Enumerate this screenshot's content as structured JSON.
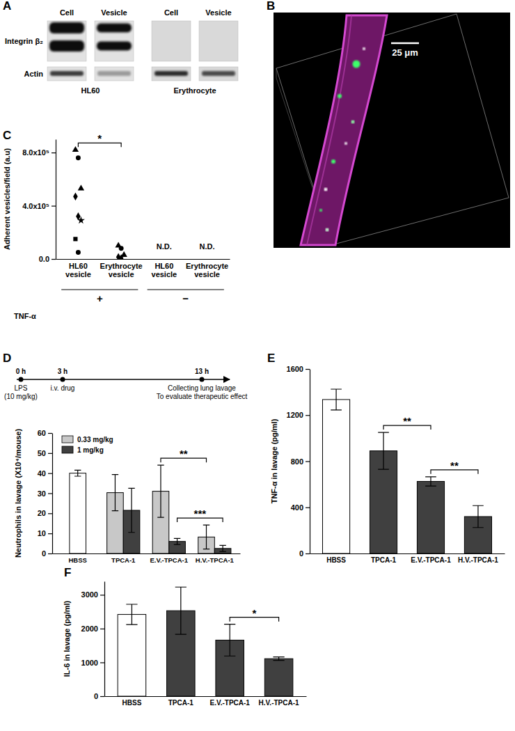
{
  "western_blot": {
    "panel": "A",
    "columns": [
      "Cell",
      "Vesicle"
    ],
    "rows": [
      "Integrin β₂",
      "Actin"
    ],
    "groups": [
      "HL60",
      "Erythrocyte"
    ]
  },
  "micrograph": {
    "panel": "B",
    "scale_bar": "25 μm"
  },
  "timeline": {
    "ticks": [
      {
        "value": 0,
        "label": "0 h"
      },
      {
        "value": 3,
        "label": "3 h"
      },
      {
        "value": 13,
        "label": "13 h"
      }
    ],
    "events": [
      [
        "LPS",
        "(10 mg/kg)"
      ],
      [
        "i.v. drug"
      ],
      [
        "Collecting lung lavage",
        "To evaluate therapeutic effect"
      ]
    ]
  },
  "chart_data": [
    {
      "panel": "C",
      "type": "scatter",
      "categories": [
        "HL60 vesicle",
        "Erythrocyte vesicle",
        "HL60 vesicle",
        "Erythrocyte vesicle"
      ],
      "values": [
        [
          820000,
          760000,
          530000,
          470000,
          320000,
          290000,
          150000,
          50000
        ],
        [
          100000,
          80000,
          30000,
          15000,
          5000
        ],
        [],
        []
      ],
      "value_labels": [
        null,
        null,
        "N.D.",
        "N.D."
      ],
      "ylabel": "Adherent vesicles/field (a.u)",
      "ylim": [
        0,
        900000
      ],
      "yticks": [
        {
          "value": 0,
          "label": "0.0"
        },
        {
          "value": 400000,
          "label": "4.0x10⁵"
        },
        {
          "value": 800000,
          "label": "8.0x10⁵"
        }
      ],
      "groups_title": "TNF-α",
      "groups": [
        "+",
        "−"
      ],
      "color": "#000000",
      "annotations": [
        {
          "text": "*",
          "between": [
            "HL60 vesicle",
            "Erythrocyte vesicle"
          ]
        }
      ]
    },
    {
      "panel": "D",
      "type": "bar",
      "categories": [
        "HBSS",
        "TPCA-1",
        "E.V.-TPCA-1",
        "H.V.-TPCA-1"
      ],
      "series": [
        {
          "color": "#ffffff",
          "values": [
            40,
            null,
            null,
            null
          ],
          "errors": [
            1.5,
            null,
            null,
            null
          ]
        },
        {
          "name": "0.33 mg/kg",
          "color": "#c8c8c8",
          "values": [
            null,
            30.3,
            31,
            8.2
          ],
          "errors": [
            null,
            9,
            13,
            6
          ]
        },
        {
          "name": "1 mg/kg",
          "color": "#404040",
          "values": [
            null,
            21.5,
            6,
            2.5
          ],
          "errors": [
            null,
            11,
            1.5,
            1.5
          ]
        }
      ],
      "ylabel": "Neutrophils in lavage (X10⁴/mouse)",
      "ylim": [
        0,
        60
      ],
      "yticks": [
        0,
        10,
        20,
        30,
        40,
        50,
        60
      ],
      "legend": "upper left",
      "annotations": [
        {
          "text": "**",
          "between": [
            "E.V.-TPCA-1",
            "H.V.-TPCA-1"
          ],
          "series": "0.33 mg/kg"
        },
        {
          "text": "***",
          "between": [
            "E.V.-TPCA-1",
            "H.V.-TPCA-1"
          ],
          "series": "1 mg/kg"
        }
      ]
    },
    {
      "panel": "E",
      "type": "bar",
      "categories": [
        "HBSS",
        "TPCA-1",
        "E.V.-TPCA-1",
        "H.V.-TPCA-1"
      ],
      "values": [
        1335,
        890,
        625,
        320
      ],
      "errors": [
        90,
        160,
        40,
        95
      ],
      "colors": [
        "#ffffff",
        "#404040",
        "#404040",
        "#404040"
      ],
      "ylabel": "TNF-α in lavage (pg/ml)",
      "ylim": [
        0,
        1600
      ],
      "yticks": [
        0,
        400,
        800,
        1200,
        1600
      ],
      "annotations": [
        {
          "text": "**",
          "between": [
            "TPCA-1",
            "E.V.-TPCA-1"
          ]
        },
        {
          "text": "**",
          "between": [
            "E.V.-TPCA-1",
            "H.V.-TPCA-1"
          ]
        }
      ]
    },
    {
      "panel": "F",
      "type": "bar",
      "categories": [
        "HBSS",
        "TPCA-1",
        "E.V.-TPCA-1",
        "H.V.-TPCA-1"
      ],
      "values": [
        2420,
        2530,
        1660,
        1110
      ],
      "errors": [
        300,
        700,
        470,
        50
      ],
      "colors": [
        "#ffffff",
        "#404040",
        "#404040",
        "#404040"
      ],
      "ylabel": "IL-6 in lavage (pg/ml)",
      "ylim": [
        0,
        3400
      ],
      "yticks": [
        0,
        1000,
        2000,
        3000
      ],
      "annotations": [
        {
          "text": "*",
          "between": [
            "E.V.-TPCA-1",
            "H.V.-TPCA-1"
          ]
        }
      ]
    }
  ]
}
